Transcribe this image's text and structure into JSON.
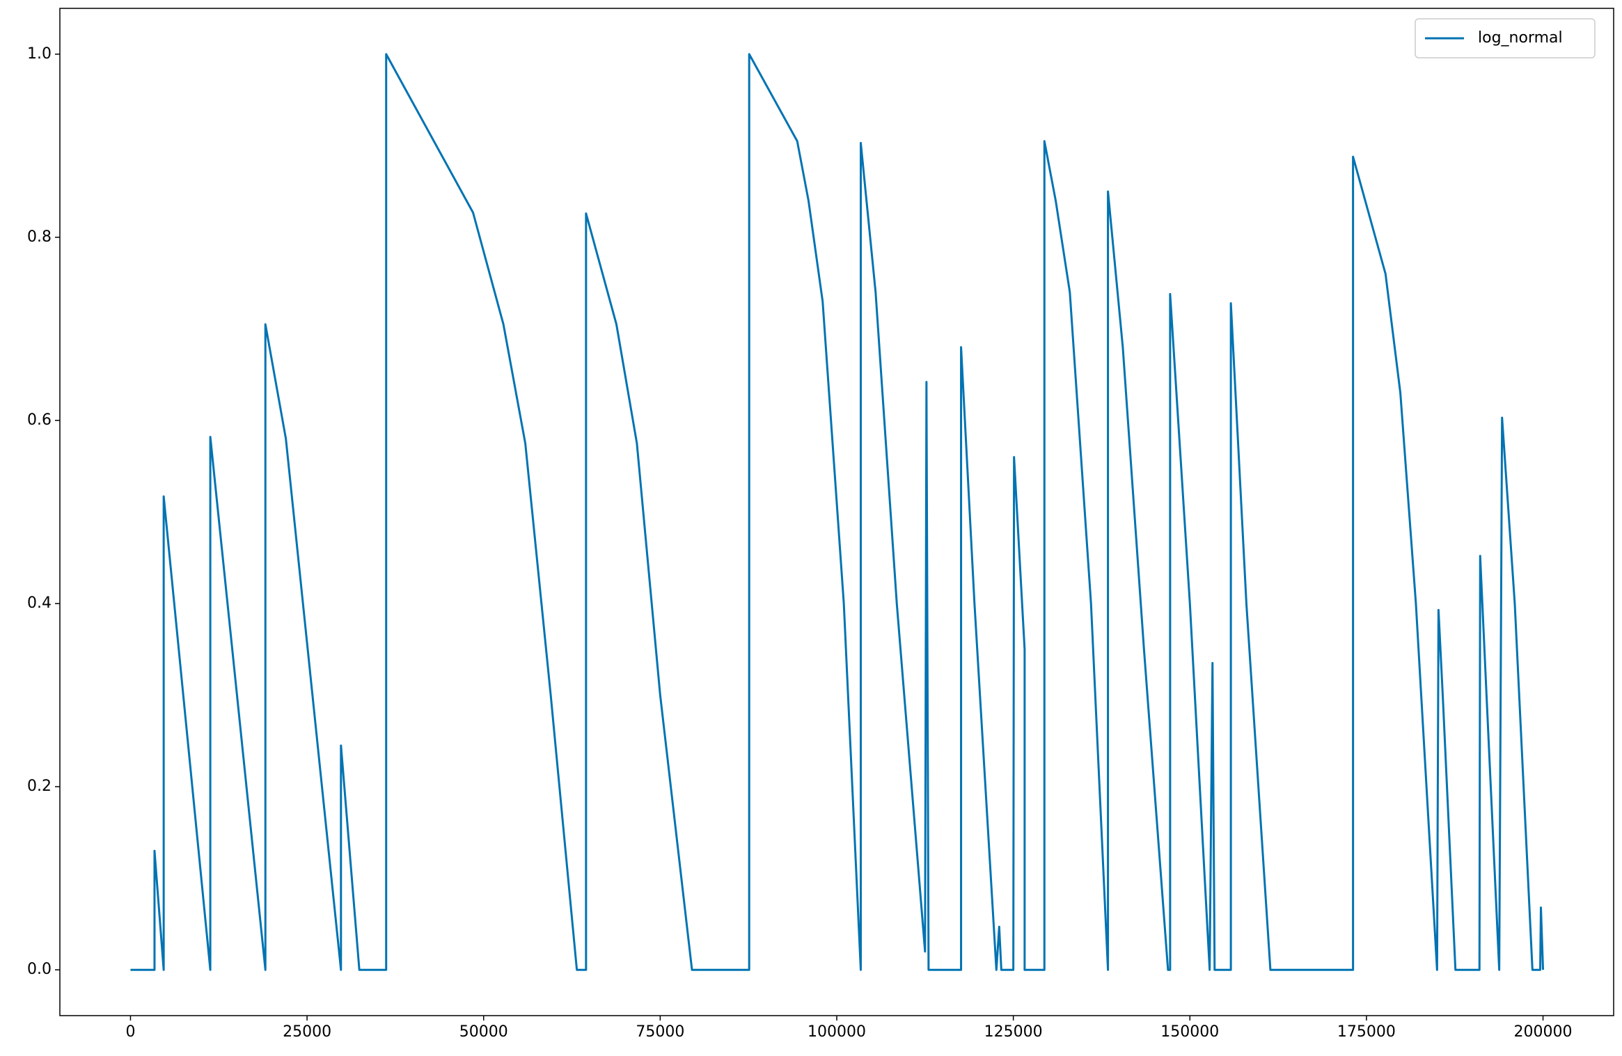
{
  "chart_data": {
    "type": "line",
    "x": [
      0,
      3400,
      3400,
      4700,
      4700,
      11300,
      11300,
      19100,
      19100,
      22000,
      29800,
      29800,
      32400,
      36200,
      36200,
      48500,
      52800,
      55900,
      59500,
      63200,
      64500,
      64500,
      68800,
      71700,
      75000,
      79500,
      87600,
      87600,
      94400,
      96000,
      98000,
      101000,
      103400,
      103400,
      105500,
      108500,
      112500,
      112700,
      113000,
      117600,
      117600,
      119500,
      122600,
      123000,
      123300,
      125000,
      125100,
      126600,
      126600,
      129400,
      129400,
      131000,
      133000,
      136000,
      138400,
      138400,
      140500,
      143500,
      146900,
      147200,
      147200,
      150000,
      152800,
      153200,
      153500,
      155800,
      155800,
      158000,
      161400,
      173100,
      173100,
      177700,
      179800,
      182000,
      185000,
      185200,
      185800,
      187600,
      191000,
      191100,
      192000,
      193800,
      194200,
      196000,
      198500,
      199600,
      199700,
      200000
    ],
    "series": [
      {
        "name": "log_normal",
        "color": "#0173b2",
        "values": [
          0,
          0,
          0.13,
          0,
          0.517,
          0,
          0.582,
          0,
          0.705,
          0.58,
          0,
          0.245,
          0,
          0,
          1.0,
          0.827,
          0.705,
          0.575,
          0.3,
          0,
          0,
          0.826,
          0.705,
          0.575,
          0.3,
          0,
          0,
          1.0,
          0.905,
          0.84,
          0.73,
          0.4,
          0,
          0.903,
          0.74,
          0.4,
          0.02,
          0.642,
          0,
          0,
          0.68,
          0.4,
          0,
          0.047,
          0,
          0,
          0.56,
          0.35,
          0,
          0,
          0.905,
          0.84,
          0.74,
          0.4,
          0,
          0.85,
          0.68,
          0.35,
          0,
          0,
          0.738,
          0.4,
          0,
          0.335,
          0,
          0,
          0.728,
          0.4,
          0,
          0,
          0.888,
          0.76,
          0.63,
          0.4,
          0,
          0.393,
          0.3,
          0,
          0,
          0.452,
          0.3,
          0,
          0.603,
          0.4,
          0,
          0,
          0.068,
          0
        ]
      }
    ],
    "xlim": [
      -10000,
      210000
    ],
    "ylim": [
      -0.05,
      1.05
    ],
    "xticks": [
      0,
      25000,
      50000,
      75000,
      100000,
      125000,
      150000,
      175000,
      200000
    ],
    "yticks": [
      {
        "value": 0,
        "label": "0.0"
      },
      0.2,
      0.4,
      0.6,
      0.8,
      {
        "value": 1,
        "label": "1.0"
      }
    ],
    "legend": "upper right"
  }
}
